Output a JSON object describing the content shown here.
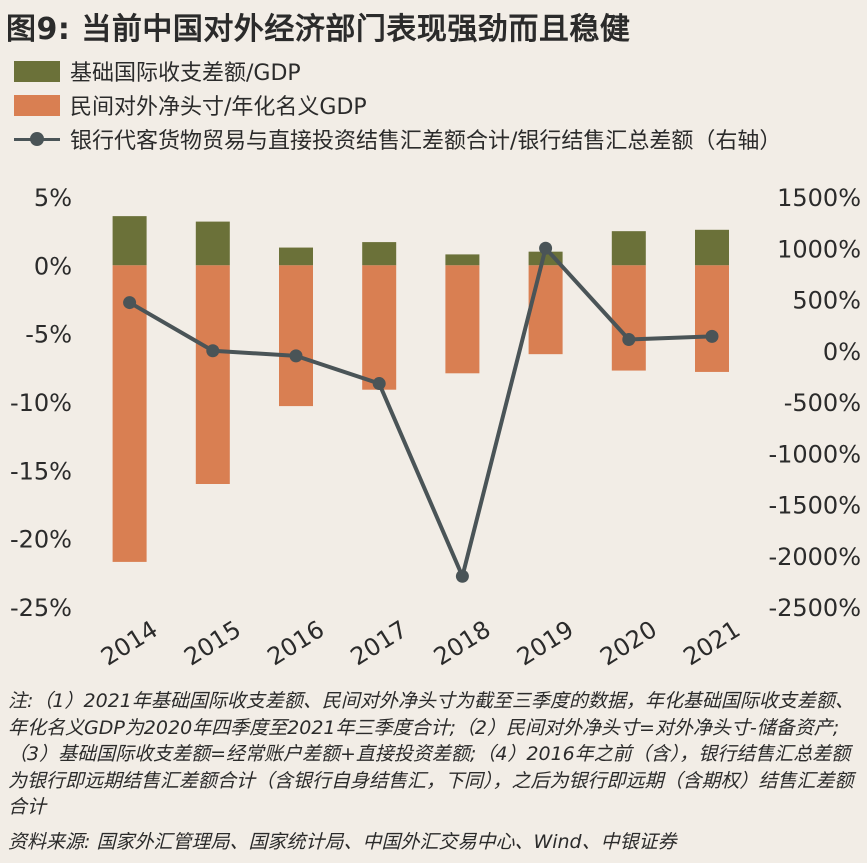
{
  "title": "图9: 当前中国对外经济部门表现强劲而且稳健",
  "legend": [
    {
      "label": "基础国际收支差额/GDP",
      "type": "bar",
      "color": "#6b7139"
    },
    {
      "label": "民间对外净头寸/年化名义GDP",
      "type": "bar",
      "color": "#d97f52"
    },
    {
      "label": "银行代客货物贸易与直接投资结售汇差额合计/银行结售汇总差额（右轴）",
      "type": "line",
      "color": "#4a5457"
    }
  ],
  "chart_data": {
    "type": "bar",
    "categories": [
      "2014",
      "2015",
      "2016",
      "2017",
      "2018",
      "2019",
      "2020",
      "2021"
    ],
    "series": [
      {
        "name": "基础国际收支差额/GDP",
        "type": "bar",
        "axis": "left",
        "color": "#6b7139",
        "values": [
          3.6,
          3.2,
          1.3,
          1.7,
          0.8,
          1.0,
          2.5,
          2.6
        ]
      },
      {
        "name": "民间对外净头寸/年化名义GDP",
        "type": "bar",
        "axis": "left",
        "color": "#d97f52",
        "values": [
          -21.7,
          -16.0,
          -10.3,
          -9.1,
          -7.9,
          -6.5,
          -7.7,
          -7.8
        ]
      },
      {
        "name": "银行代客货物贸易与直接投资结售汇差额合计/银行结售汇总差额（右轴）",
        "type": "line",
        "axis": "right",
        "color": "#4a5457",
        "values": [
          470,
          0,
          -50,
          -320,
          -2200,
          1000,
          110,
          140
        ]
      }
    ],
    "y_left": {
      "min": -25,
      "max": 5,
      "step": 5,
      "ticks": [
        "5%",
        "0%",
        "-5%",
        "-10%",
        "-15%",
        "-20%",
        "-25%"
      ]
    },
    "y_right": {
      "min": -2500,
      "max": 1500,
      "step": 500,
      "ticks": [
        "1500%",
        "1000%",
        "500%",
        "0%",
        "-500%",
        "-1000%",
        "-1500%",
        "-2000%",
        "-2500%"
      ]
    },
    "grid": false,
    "legend_position": "top-left"
  },
  "note": "注:（1）2021年基础国际收支差额、民间对外净头寸为截至三季度的数据，年化基础国际收支差额、年化名义GDP为2020年四季度至2021年三季度合计;（2）民间对外净头寸=对外净头寸-储备资产;（3）基础国际收支差额=经常账户差额+直接投资差额;（4）2016年之前（含），银行结售汇总差额为银行即远期结售汇差额合计（含银行自身结售汇，下同），之后为银行即远期（含期权）结售汇差额合计",
  "source": "资料来源: 国家外汇管理局、国家统计局、中国外汇交易中心、Wind、中银证券"
}
